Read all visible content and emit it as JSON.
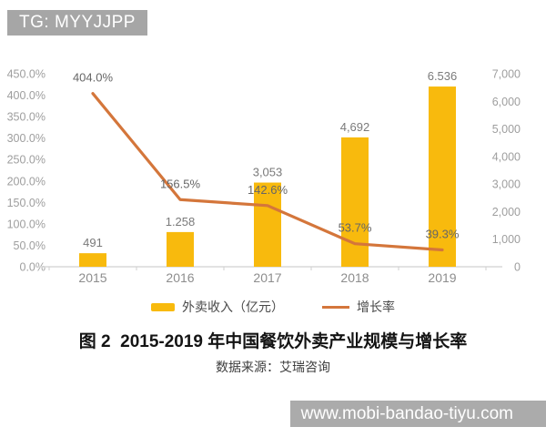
{
  "badges": {
    "top_left": "TG: MYYJJPP",
    "bottom_right": "www.mobi-bandao-tiyu.com"
  },
  "caption": {
    "title": "图 2  2015-2019 年中国餐饮外卖产业规模与增长率",
    "source": "数据来源：艾瑞咨询"
  },
  "chart_data": {
    "type": "combo",
    "categories": [
      "2015",
      "2016",
      "2017",
      "2018",
      "2019"
    ],
    "series": [
      {
        "name": "外卖收入（亿元）",
        "type": "bar",
        "axis": "right",
        "color": "#F8BA0D",
        "values": [
          491,
          1258,
          3053,
          4692,
          6536
        ],
        "labels": [
          "491",
          "1.258",
          "3,053",
          "4,692",
          "6.536"
        ]
      },
      {
        "name": "增长率",
        "type": "line",
        "axis": "left",
        "color": "#D4763B",
        "values": [
          404.0,
          156.5,
          142.6,
          53.7,
          39.3
        ],
        "labels": [
          "404.0%",
          "156.5%",
          "142.6%",
          "53.7%",
          "39.3%"
        ]
      }
    ],
    "left_axis": {
      "min": 0,
      "max": 450,
      "ticks": [
        "450.0%",
        "400.0%",
        "350.0%",
        "300.0%",
        "250.0%",
        "200.0%",
        "150.0%",
        "100.0%",
        "50.0%",
        "0.0%"
      ]
    },
    "right_axis": {
      "min": 0,
      "max": 7000,
      "ticks": [
        "7,000",
        "6,000",
        "5,000",
        "4,000",
        "3,000",
        "2,000",
        "1,000",
        "0"
      ]
    },
    "grid": false,
    "legend_position": "bottom",
    "title": "2015-2019 年中国餐饮外卖产业规模与增长率"
  }
}
